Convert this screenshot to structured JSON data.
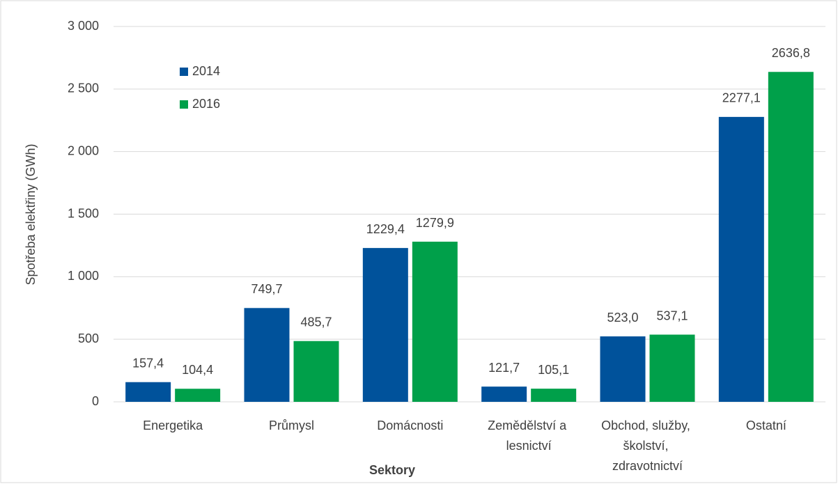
{
  "chart_data": {
    "type": "bar",
    "categories": [
      "Energetika",
      "Průmysl",
      "Domácnosti",
      "Zemědělství a lesnictví",
      "Obchod, služby, školství, zdravotnictví",
      "Ostatní"
    ],
    "series": [
      {
        "name": "2014",
        "color": "#00529b",
        "values": [
          157.4,
          749.7,
          1229.4,
          121.7,
          523.0,
          2277.1
        ],
        "value_labels": [
          "157,4",
          "749,7",
          "1229,4",
          "121,7",
          "523,0",
          "2277,1"
        ]
      },
      {
        "name": "2016",
        "color": "#00a04a",
        "values": [
          104.4,
          485.7,
          1279.9,
          105.1,
          537.1,
          2636.8
        ],
        "value_labels": [
          "104,4",
          "485,7",
          "1279,9",
          "105,1",
          "537,1",
          "2636,8"
        ]
      }
    ],
    "ylabel": "Spotřeba elektřiny (GWh)",
    "xlabel": "Sektory",
    "ylim": [
      0,
      3000
    ],
    "yticks": [
      0,
      500,
      {
        "value": 1000,
        "label": "1 000"
      },
      {
        "value": 1500,
        "label": "1 500"
      },
      {
        "value": 2000,
        "label": "2 000"
      },
      {
        "value": 2500,
        "label": "2 500"
      },
      {
        "value": 3000,
        "label": "3 000"
      }
    ],
    "grid": true,
    "legend": "upper left"
  }
}
